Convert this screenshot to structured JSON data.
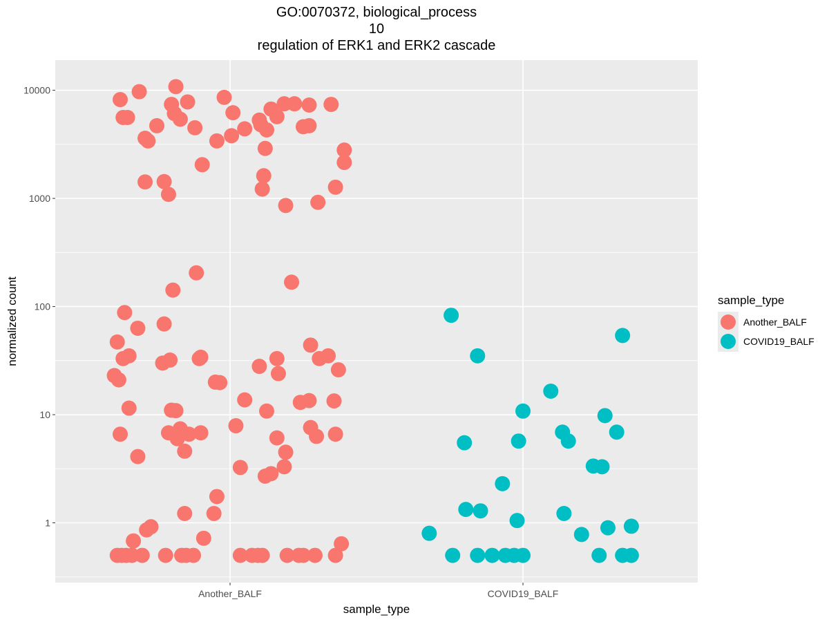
{
  "chart_data": {
    "type": "scatter",
    "title": [
      "GO:0070372, biological_process",
      "10",
      "regulation of ERK1 and ERK2 cascade"
    ],
    "xlabel": "sample_type",
    "ylabel": "normalized count",
    "y_scale": "log10",
    "ylim": [
      0.28,
      19000
    ],
    "y_ticks": [
      1,
      10,
      100,
      1000,
      10000
    ],
    "y_tick_labels": [
      "1",
      "10",
      "100",
      "1000",
      "10000"
    ],
    "categories": [
      "Another_BALF",
      "COVID19_BALF"
    ],
    "grid": true,
    "legend": {
      "title": "sample_type",
      "position": "right"
    },
    "series": [
      {
        "name": "Another_BALF",
        "color": "#F8766D",
        "points": [
          {
            "x": "Another_BALF",
            "offset": -0.375,
            "y": 8200
          },
          {
            "x": "Another_BALF",
            "offset": -0.31,
            "y": 9700
          },
          {
            "x": "Another_BALF",
            "offset": -0.365,
            "y": 5600
          },
          {
            "x": "Another_BALF",
            "offset": -0.35,
            "y": 5600
          },
          {
            "x": "Another_BALF",
            "offset": -0.25,
            "y": 4700
          },
          {
            "x": "Another_BALF",
            "offset": -0.29,
            "y": 3600
          },
          {
            "x": "Another_BALF",
            "offset": -0.28,
            "y": 3400
          },
          {
            "x": "Another_BALF",
            "offset": -0.2,
            "y": 7400
          },
          {
            "x": "Another_BALF",
            "offset": -0.185,
            "y": 10800
          },
          {
            "x": "Another_BALF",
            "offset": -0.19,
            "y": 6100
          },
          {
            "x": "Another_BALF",
            "offset": -0.17,
            "y": 5400
          },
          {
            "x": "Another_BALF",
            "offset": -0.145,
            "y": 7800
          },
          {
            "x": "Another_BALF",
            "offset": -0.12,
            "y": 4500
          },
          {
            "x": "Another_BALF",
            "offset": -0.095,
            "y": 2050
          },
          {
            "x": "Another_BALF",
            "offset": -0.045,
            "y": 3400
          },
          {
            "x": "Another_BALF",
            "offset": -0.02,
            "y": 8600
          },
          {
            "x": "Another_BALF",
            "offset": 0.01,
            "y": 6200
          },
          {
            "x": "Another_BALF",
            "offset": 0.005,
            "y": 3800
          },
          {
            "x": "Another_BALF",
            "offset": 0.05,
            "y": 4400
          },
          {
            "x": "Another_BALF",
            "offset": 0.1,
            "y": 5300
          },
          {
            "x": "Another_BALF",
            "offset": 0.105,
            "y": 4800
          },
          {
            "x": "Another_BALF",
            "offset": 0.125,
            "y": 4300
          },
          {
            "x": "Another_BALF",
            "offset": 0.14,
            "y": 6700
          },
          {
            "x": "Another_BALF",
            "offset": 0.16,
            "y": 5700
          },
          {
            "x": "Another_BALF",
            "offset": 0.185,
            "y": 7500
          },
          {
            "x": "Another_BALF",
            "offset": 0.22,
            "y": 7500
          },
          {
            "x": "Another_BALF",
            "offset": 0.25,
            "y": 4600
          },
          {
            "x": "Another_BALF",
            "offset": 0.27,
            "y": 7300
          },
          {
            "x": "Another_BALF",
            "offset": 0.27,
            "y": 4700
          },
          {
            "x": "Another_BALF",
            "offset": 0.345,
            "y": 7400
          },
          {
            "x": "Another_BALF",
            "offset": 0.12,
            "y": 2900
          },
          {
            "x": "Another_BALF",
            "offset": 0.115,
            "y": 1620
          },
          {
            "x": "Another_BALF",
            "offset": 0.11,
            "y": 1220
          },
          {
            "x": "Another_BALF",
            "offset": 0.19,
            "y": 860
          },
          {
            "x": "Another_BALF",
            "offset": 0.3,
            "y": 920
          },
          {
            "x": "Another_BALF",
            "offset": 0.39,
            "y": 2800
          },
          {
            "x": "Another_BALF",
            "offset": 0.39,
            "y": 2150
          },
          {
            "x": "Another_BALF",
            "offset": 0.36,
            "y": 1270
          },
          {
            "x": "Another_BALF",
            "offset": -0.29,
            "y": 1420
          },
          {
            "x": "Another_BALF",
            "offset": -0.225,
            "y": 1430
          },
          {
            "x": "Another_BALF",
            "offset": -0.21,
            "y": 1090
          },
          {
            "x": "Another_BALF",
            "offset": -0.115,
            "y": 205
          },
          {
            "x": "Another_BALF",
            "offset": -0.195,
            "y": 142
          },
          {
            "x": "Another_BALF",
            "offset": 0.21,
            "y": 168
          },
          {
            "x": "Another_BALF",
            "offset": -0.36,
            "y": 88
          },
          {
            "x": "Another_BALF",
            "offset": -0.315,
            "y": 63
          },
          {
            "x": "Another_BALF",
            "offset": -0.225,
            "y": 69
          },
          {
            "x": "Another_BALF",
            "offset": -0.385,
            "y": 47
          },
          {
            "x": "Another_BALF",
            "offset": -0.365,
            "y": 33
          },
          {
            "x": "Another_BALF",
            "offset": -0.345,
            "y": 35
          },
          {
            "x": "Another_BALF",
            "offset": -0.23,
            "y": 30
          },
          {
            "x": "Another_BALF",
            "offset": -0.205,
            "y": 32
          },
          {
            "x": "Another_BALF",
            "offset": -0.105,
            "y": 33
          },
          {
            "x": "Another_BALF",
            "offset": -0.1,
            "y": 34
          },
          {
            "x": "Another_BALF",
            "offset": -0.05,
            "y": 20
          },
          {
            "x": "Another_BALF",
            "offset": -0.035,
            "y": 19.8
          },
          {
            "x": "Another_BALF",
            "offset": 0.1,
            "y": 28
          },
          {
            "x": "Another_BALF",
            "offset": 0.16,
            "y": 33
          },
          {
            "x": "Another_BALF",
            "offset": 0.165,
            "y": 24
          },
          {
            "x": "Another_BALF",
            "offset": 0.275,
            "y": 44
          },
          {
            "x": "Another_BALF",
            "offset": 0.305,
            "y": 33
          },
          {
            "x": "Another_BALF",
            "offset": 0.335,
            "y": 35
          },
          {
            "x": "Another_BALF",
            "offset": 0.37,
            "y": 26
          },
          {
            "x": "Another_BALF",
            "offset": -0.395,
            "y": 23
          },
          {
            "x": "Another_BALF",
            "offset": -0.38,
            "y": 21
          },
          {
            "x": "Another_BALF",
            "offset": -0.345,
            "y": 11.5
          },
          {
            "x": "Another_BALF",
            "offset": -0.2,
            "y": 11
          },
          {
            "x": "Another_BALF",
            "offset": -0.185,
            "y": 10.9
          },
          {
            "x": "Another_BALF",
            "offset": 0.05,
            "y": 13.7
          },
          {
            "x": "Another_BALF",
            "offset": 0.125,
            "y": 10.8
          },
          {
            "x": "Another_BALF",
            "offset": 0.24,
            "y": 13
          },
          {
            "x": "Another_BALF",
            "offset": 0.27,
            "y": 13.5
          },
          {
            "x": "Another_BALF",
            "offset": 0.355,
            "y": 13.4
          },
          {
            "x": "Another_BALF",
            "offset": -0.375,
            "y": 6.6
          },
          {
            "x": "Another_BALF",
            "offset": -0.21,
            "y": 6.8
          },
          {
            "x": "Another_BALF",
            "offset": -0.18,
            "y": 6
          },
          {
            "x": "Another_BALF",
            "offset": -0.17,
            "y": 7.4
          },
          {
            "x": "Another_BALF",
            "offset": -0.14,
            "y": 6.6
          },
          {
            "x": "Another_BALF",
            "offset": -0.1,
            "y": 6.8
          },
          {
            "x": "Another_BALF",
            "offset": 0.02,
            "y": 7.9
          },
          {
            "x": "Another_BALF",
            "offset": -0.155,
            "y": 4.6
          },
          {
            "x": "Another_BALF",
            "offset": -0.315,
            "y": 4.1
          },
          {
            "x": "Another_BALF",
            "offset": 0.16,
            "y": 6.1
          },
          {
            "x": "Another_BALF",
            "offset": 0.19,
            "y": 4.5
          },
          {
            "x": "Another_BALF",
            "offset": 0.275,
            "y": 7.6
          },
          {
            "x": "Another_BALF",
            "offset": 0.295,
            "y": 6.3
          },
          {
            "x": "Another_BALF",
            "offset": 0.36,
            "y": 6.6
          },
          {
            "x": "Another_BALF",
            "offset": 0.035,
            "y": 3.25
          },
          {
            "x": "Another_BALF",
            "offset": 0.12,
            "y": 2.7
          },
          {
            "x": "Another_BALF",
            "offset": 0.14,
            "y": 2.85
          },
          {
            "x": "Another_BALF",
            "offset": 0.185,
            "y": 3.3
          },
          {
            "x": "Another_BALF",
            "offset": -0.045,
            "y": 1.75
          },
          {
            "x": "Another_BALF",
            "offset": -0.155,
            "y": 1.22
          },
          {
            "x": "Another_BALF",
            "offset": -0.055,
            "y": 1.22
          },
          {
            "x": "Another_BALF",
            "offset": -0.285,
            "y": 0.86
          },
          {
            "x": "Another_BALF",
            "offset": -0.27,
            "y": 0.92
          },
          {
            "x": "Another_BALF",
            "offset": -0.33,
            "y": 0.68
          },
          {
            "x": "Another_BALF",
            "offset": -0.09,
            "y": 0.72
          },
          {
            "x": "Another_BALF",
            "offset": 0.38,
            "y": 0.64
          },
          {
            "x": "Another_BALF",
            "offset": -0.385,
            "y": 0.5
          },
          {
            "x": "Another_BALF",
            "offset": -0.37,
            "y": 0.5
          },
          {
            "x": "Another_BALF",
            "offset": -0.355,
            "y": 0.5
          },
          {
            "x": "Another_BALF",
            "offset": -0.335,
            "y": 0.5
          },
          {
            "x": "Another_BALF",
            "offset": -0.3,
            "y": 0.5
          },
          {
            "x": "Another_BALF",
            "offset": -0.22,
            "y": 0.5
          },
          {
            "x": "Another_BALF",
            "offset": -0.165,
            "y": 0.5
          },
          {
            "x": "Another_BALF",
            "offset": -0.15,
            "y": 0.5
          },
          {
            "x": "Another_BALF",
            "offset": -0.125,
            "y": 0.5
          },
          {
            "x": "Another_BALF",
            "offset": 0.035,
            "y": 0.5
          },
          {
            "x": "Another_BALF",
            "offset": 0.075,
            "y": 0.5
          },
          {
            "x": "Another_BALF",
            "offset": 0.095,
            "y": 0.5
          },
          {
            "x": "Another_BALF",
            "offset": 0.11,
            "y": 0.5
          },
          {
            "x": "Another_BALF",
            "offset": 0.195,
            "y": 0.5
          },
          {
            "x": "Another_BALF",
            "offset": 0.235,
            "y": 0.5
          },
          {
            "x": "Another_BALF",
            "offset": 0.25,
            "y": 0.5
          },
          {
            "x": "Another_BALF",
            "offset": 0.29,
            "y": 0.5
          },
          {
            "x": "Another_BALF",
            "offset": 0.36,
            "y": 0.5
          }
        ]
      },
      {
        "name": "COVID19_BALF",
        "color": "#00BFC4",
        "points": [
          {
            "x": "COVID19_BALF",
            "offset": -0.245,
            "y": 83
          },
          {
            "x": "COVID19_BALF",
            "offset": -0.155,
            "y": 35
          },
          {
            "x": "COVID19_BALF",
            "offset": 0.34,
            "y": 54
          },
          {
            "x": "COVID19_BALF",
            "offset": 0.095,
            "y": 16.5
          },
          {
            "x": "COVID19_BALF",
            "offset": 0.0,
            "y": 10.8
          },
          {
            "x": "COVID19_BALF",
            "offset": 0.28,
            "y": 9.8
          },
          {
            "x": "COVID19_BALF",
            "offset": 0.135,
            "y": 6.9
          },
          {
            "x": "COVID19_BALF",
            "offset": 0.32,
            "y": 6.9
          },
          {
            "x": "COVID19_BALF",
            "offset": -0.2,
            "y": 5.5
          },
          {
            "x": "COVID19_BALF",
            "offset": -0.015,
            "y": 5.7
          },
          {
            "x": "COVID19_BALF",
            "offset": 0.155,
            "y": 5.7
          },
          {
            "x": "COVID19_BALF",
            "offset": 0.24,
            "y": 3.35
          },
          {
            "x": "COVID19_BALF",
            "offset": 0.27,
            "y": 3.3
          },
          {
            "x": "COVID19_BALF",
            "offset": -0.07,
            "y": 2.3
          },
          {
            "x": "COVID19_BALF",
            "offset": -0.195,
            "y": 1.33
          },
          {
            "x": "COVID19_BALF",
            "offset": -0.145,
            "y": 1.29
          },
          {
            "x": "COVID19_BALF",
            "offset": 0.14,
            "y": 1.22
          },
          {
            "x": "COVID19_BALF",
            "offset": -0.02,
            "y": 1.05
          },
          {
            "x": "COVID19_BALF",
            "offset": 0.29,
            "y": 0.9
          },
          {
            "x": "COVID19_BALF",
            "offset": 0.37,
            "y": 0.93
          },
          {
            "x": "COVID19_BALF",
            "offset": -0.32,
            "y": 0.8
          },
          {
            "x": "COVID19_BALF",
            "offset": 0.2,
            "y": 0.78
          },
          {
            "x": "COVID19_BALF",
            "offset": -0.24,
            "y": 0.5
          },
          {
            "x": "COVID19_BALF",
            "offset": -0.155,
            "y": 0.5
          },
          {
            "x": "COVID19_BALF",
            "offset": -0.105,
            "y": 0.5
          },
          {
            "x": "COVID19_BALF",
            "offset": -0.06,
            "y": 0.5
          },
          {
            "x": "COVID19_BALF",
            "offset": -0.03,
            "y": 0.5
          },
          {
            "x": "COVID19_BALF",
            "offset": 0.0,
            "y": 0.5
          },
          {
            "x": "COVID19_BALF",
            "offset": 0.26,
            "y": 0.5
          },
          {
            "x": "COVID19_BALF",
            "offset": 0.34,
            "y": 0.5
          },
          {
            "x": "COVID19_BALF",
            "offset": 0.37,
            "y": 0.5
          }
        ]
      }
    ]
  }
}
